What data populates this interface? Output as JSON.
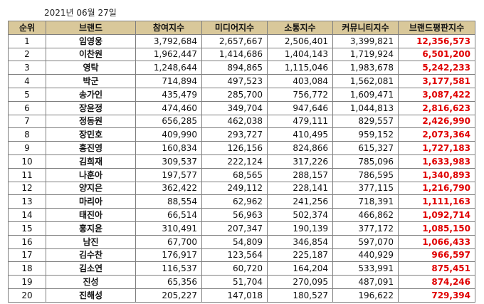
{
  "date": "2021년 06월 27일",
  "headers": [
    "순위",
    "브랜드",
    "참여지수",
    "미디어지수",
    "소통지수",
    "커뮤니티지수",
    "브랜드평판지수"
  ],
  "rows": [
    [
      "1",
      "임영웅",
      "3,792,684",
      "2,657,667",
      "2,506,401",
      "3,399,821",
      "12,356,573"
    ],
    [
      "2",
      "이찬원",
      "1,962,447",
      "1,414,686",
      "1,404,143",
      "1,719,924",
      "6,501,200"
    ],
    [
      "3",
      "영탁",
      "1,248,644",
      "894,865",
      "1,115,046",
      "1,983,678",
      "5,242,233"
    ],
    [
      "4",
      "박군",
      "714,894",
      "497,523",
      "403,084",
      "1,562,081",
      "3,177,581"
    ],
    [
      "5",
      "송가인",
      "435,479",
      "285,700",
      "756,772",
      "1,609,471",
      "3,087,422"
    ],
    [
      "6",
      "장윤정",
      "474,460",
      "349,704",
      "947,646",
      "1,044,813",
      "2,816,623"
    ],
    [
      "7",
      "정동원",
      "656,285",
      "462,038",
      "479,111",
      "829,557",
      "2,426,990"
    ],
    [
      "8",
      "장민호",
      "409,990",
      "293,727",
      "410,495",
      "959,152",
      "2,073,364"
    ],
    [
      "9",
      "홍진영",
      "160,834",
      "126,156",
      "824,866",
      "615,327",
      "1,727,183"
    ],
    [
      "10",
      "김희재",
      "309,537",
      "222,124",
      "317,226",
      "785,096",
      "1,633,983"
    ],
    [
      "11",
      "나훈아",
      "197,577",
      "68,565",
      "288,157",
      "786,595",
      "1,340,893"
    ],
    [
      "12",
      "양지은",
      "362,422",
      "249,112",
      "228,141",
      "377,115",
      "1,216,790"
    ],
    [
      "13",
      "마리아",
      "88,554",
      "62,962",
      "241,256",
      "718,391",
      "1,111,163"
    ],
    [
      "14",
      "태진아",
      "66,514",
      "56,963",
      "502,374",
      "466,862",
      "1,092,714"
    ],
    [
      "15",
      "홍지윤",
      "310,491",
      "207,347",
      "190,139",
      "377,172",
      "1,085,150"
    ],
    [
      "16",
      "남진",
      "67,700",
      "54,809",
      "346,854",
      "597,070",
      "1,066,433"
    ],
    [
      "17",
      "김수찬",
      "176,917",
      "123,564",
      "225,187",
      "440,929",
      "966,597"
    ],
    [
      "18",
      "김소연",
      "116,537",
      "60,720",
      "164,204",
      "533,991",
      "875,451"
    ],
    [
      "19",
      "진성",
      "65,356",
      "51,704",
      "270,095",
      "487,091",
      "874,246"
    ],
    [
      "20",
      "진해성",
      "205,227",
      "147,018",
      "180,527",
      "196,622",
      "729,394"
    ]
  ],
  "colors": {
    "header_bg": "#d9c89a",
    "total_text": "#e00000",
    "border": "#7f7f7f"
  }
}
